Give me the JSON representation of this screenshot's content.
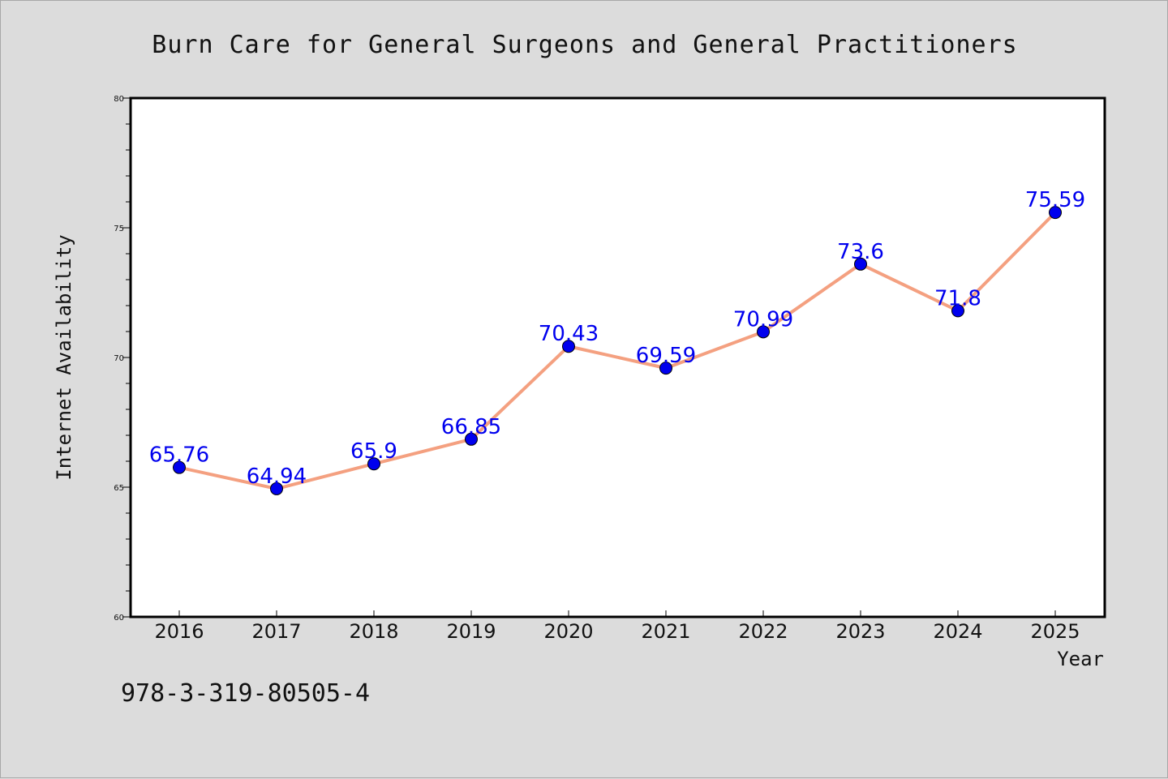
{
  "chart_data": {
    "type": "line",
    "title": "Burn Care for General Surgeons and General Practitioners",
    "xlabel": "Year",
    "ylabel": "Internet Availability",
    "categories": [
      "2016",
      "2017",
      "2018",
      "2019",
      "2020",
      "2021",
      "2022",
      "2023",
      "2024",
      "2025"
    ],
    "series": [
      {
        "values": [
          65.76,
          64.94,
          65.9,
          66.85,
          70.43,
          69.59,
          70.99,
          73.6,
          71.8,
          75.59
        ],
        "labels": [
          "65.76",
          "64.94",
          "65.9",
          "66.85",
          "70.43",
          "69.59",
          "70.99",
          "73.6",
          "71.8",
          "75.59"
        ],
        "line_color": "#f4a080",
        "marker_color": "#0000ee"
      }
    ],
    "ylim": [
      60,
      80
    ],
    "yticks_major": [
      60,
      65,
      70,
      75,
      80
    ],
    "ytick_labels": [
      "60",
      "65",
      "70",
      "75",
      "80"
    ],
    "yticks_minor_step": 1,
    "grid": false,
    "legend": "none"
  },
  "annotation": {
    "isbn": "978-3-319-80505-4"
  },
  "colors": {
    "background": "#dcdcdc",
    "plot_background": "#ffffff"
  }
}
